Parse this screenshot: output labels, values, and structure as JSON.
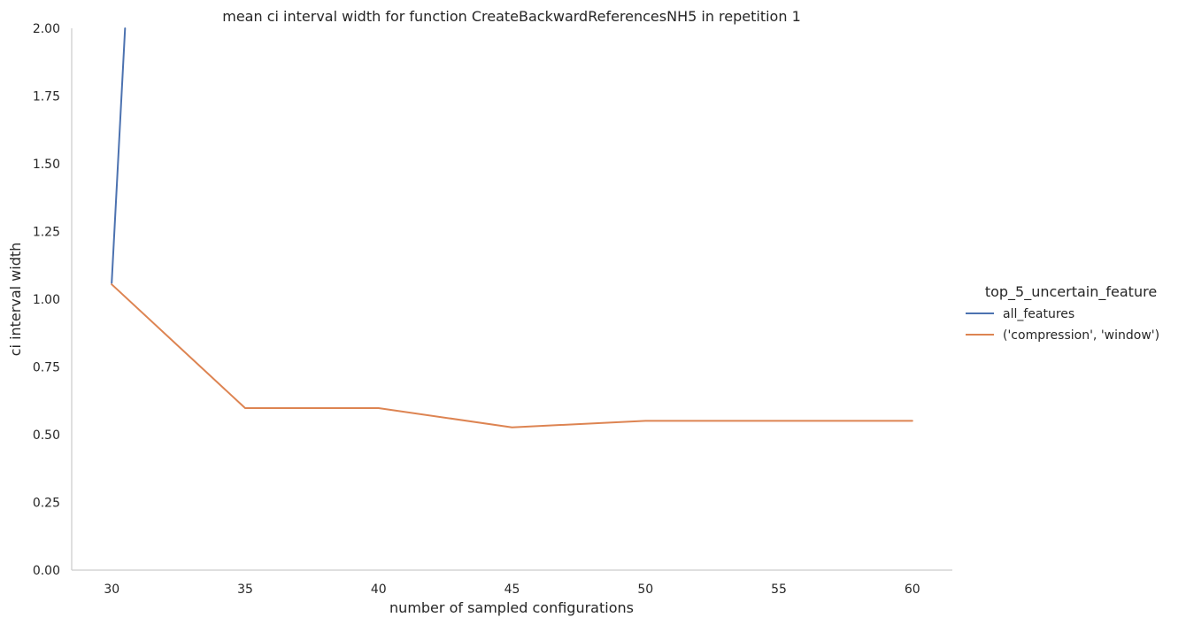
{
  "chart_data": {
    "type": "line",
    "title": "mean ci interval width for function CreateBackwardReferencesNH5 in repetition 1",
    "xlabel": "number of sampled configurations",
    "ylabel": "ci interval width",
    "xlim": [
      28.5,
      61.5
    ],
    "ylim": [
      0,
      2.0
    ],
    "xticks": [
      30,
      35,
      40,
      45,
      50,
      55,
      60
    ],
    "xtick_labels": [
      "30",
      "35",
      "40",
      "45",
      "50",
      "55",
      "60"
    ],
    "yticks": [
      0,
      0.25,
      0.5,
      0.75,
      1.0,
      1.25,
      1.5,
      1.75,
      2.0
    ],
    "ytick_labels": [
      "0.00",
      "0.25",
      "0.50",
      "0.75",
      "1.00",
      "1.25",
      "1.50",
      "1.75",
      "2.00"
    ],
    "grid": false,
    "legend": {
      "title": "top_5_uncertain_feature",
      "placement": "right"
    },
    "series": [
      {
        "name": "all_features",
        "color": "#4c72b0",
        "x": [
          30,
          30.5
        ],
        "y": [
          1.06,
          2.0
        ]
      },
      {
        "name": "('compression', 'window')",
        "color": "#dd8452",
        "x": [
          30,
          35,
          40,
          45,
          50,
          55,
          60
        ],
        "y": [
          1.055,
          0.598,
          0.598,
          0.527,
          0.551,
          0.551,
          0.551
        ]
      }
    ]
  }
}
